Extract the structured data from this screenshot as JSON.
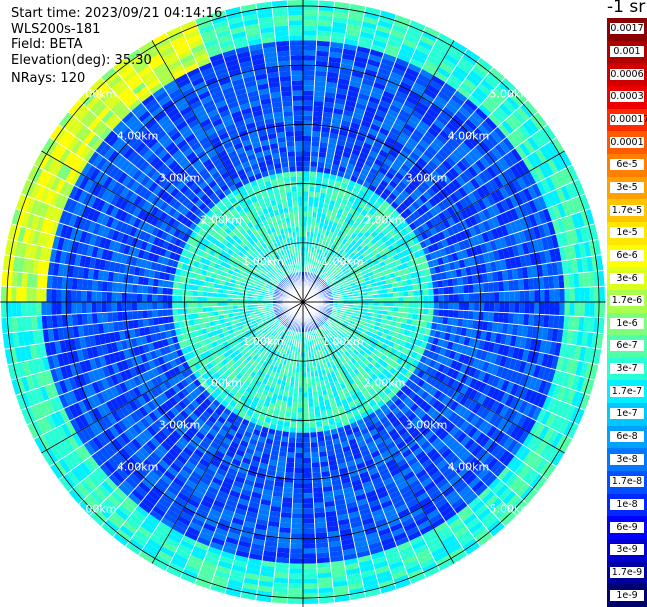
{
  "info": {
    "start_time": "Start time: 2023/09/21 04:14:16",
    "instrument": "WLS200s-181",
    "field": "Field: BETA",
    "elevation": "Elevation(deg): 35.30",
    "nrays": "NRays: 120"
  },
  "colorbar": {
    "unit": "-1 sr",
    "labels": [
      "0.0017",
      "0.001",
      "0.0006",
      "0.0003",
      "0.00017",
      "0.0001",
      "6e-5",
      "3e-5",
      "1.7e-5",
      "1e-5",
      "6e-6",
      "3e-6",
      "1.7e-6",
      "1e-6",
      "6e-7",
      "3e-7",
      "1.7e-7",
      "1e-7",
      "6e-8",
      "3e-8",
      "1.7e-8",
      "1e-8",
      "6e-9",
      "3e-9",
      "1.7e-9",
      "1e-9"
    ],
    "colors": [
      "#8b0000",
      "#b00000",
      "#d00000",
      "#ee0000",
      "#ff2a00",
      "#ff5a00",
      "#ff8000",
      "#ffa000",
      "#ffc400",
      "#ffe600",
      "#ffff00",
      "#dcff1e",
      "#aaff4c",
      "#7cff7a",
      "#50ffa8",
      "#28ffd4",
      "#00f0ff",
      "#00c8ff",
      "#00a0ff",
      "#0078ff",
      "#0050ff",
      "#0028ff",
      "#0000ff",
      "#0000d0",
      "#0000a0",
      "#000070"
    ]
  },
  "chart_data": {
    "type": "heatmap",
    "subtype": "ppi-polar",
    "field": "BETA",
    "nrays": 120,
    "elevation_deg": 35.3,
    "range_rings_km": [
      1.0,
      2.0,
      3.0,
      4.0,
      5.0
    ],
    "ring_labels": [
      "1.00km",
      "2.00km",
      "3.00km",
      "4.00km",
      "5.00km"
    ],
    "max_range_km": 5.1,
    "spoke_angles_deg": [
      0,
      30,
      60,
      90,
      120,
      150,
      180,
      210,
      240,
      270,
      300,
      330
    ],
    "ring_label_azimuths_deg": [
      -45,
      45,
      135,
      225
    ],
    "dominant_range_bins_km": [
      {
        "from": 0.0,
        "to": 0.5,
        "value": "1.7e-8"
      },
      {
        "from": 0.5,
        "to": 2.2,
        "value": "3e-7"
      },
      {
        "from": 2.2,
        "to": 4.4,
        "value": "1.7e-8"
      },
      {
        "from": 4.4,
        "to": 5.1,
        "value": "3e-7"
      }
    ],
    "enhanced_sector": {
      "azimuth_from_deg": 270,
      "azimuth_to_deg": 340,
      "range_from_km": 4.3,
      "range_to_km": 5.1,
      "value": "3e-6"
    },
    "colorbar_range": [
      "1e-9",
      "0.0017"
    ]
  }
}
